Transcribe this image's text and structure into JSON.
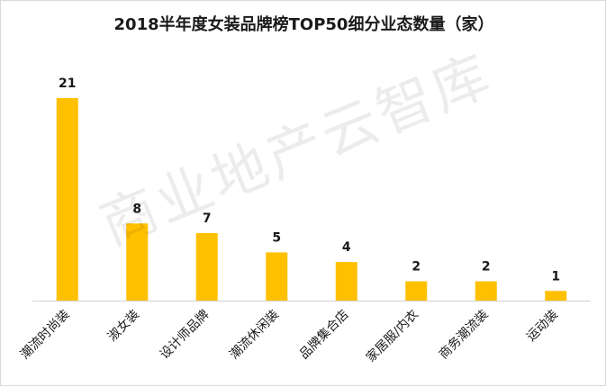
{
  "watermark": "商业地产云智库",
  "chart_data": {
    "type": "bar",
    "title": "2018半年度女装品牌榜TOP50细分业态数量（家）",
    "categories": [
      "潮流时尚装",
      "淑女装",
      "设计师品牌",
      "潮流休闲装",
      "品牌集合店",
      "家居服/内衣",
      "商务潮流装",
      "运动装"
    ],
    "values": [
      21,
      8,
      7,
      5,
      4,
      2,
      2,
      1
    ],
    "xlabel": "",
    "ylabel": "",
    "ylim": [
      0,
      21
    ],
    "grid": false,
    "legend": "none",
    "colors": {
      "bar": "#FFC000",
      "axis": "#d0d0d0",
      "label": "#1a1a1a"
    }
  }
}
